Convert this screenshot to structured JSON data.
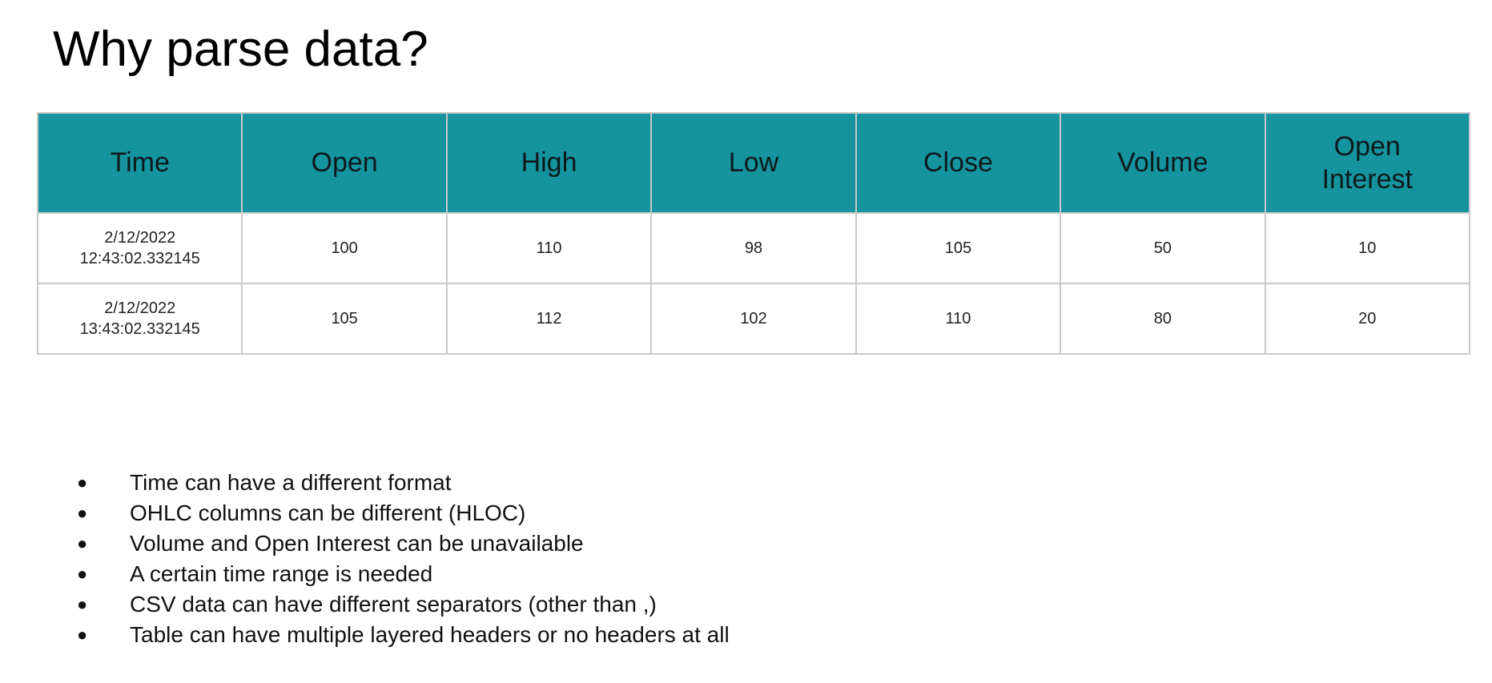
{
  "slide": {
    "title": "Why parse data?"
  },
  "table": {
    "headers": [
      "Time",
      "Open",
      "High",
      "Low",
      "Close",
      "Volume",
      "Open Interest"
    ],
    "rows": [
      {
        "time_date": "2/12/2022",
        "time_clock": "12:43:02.332145",
        "open": "100",
        "high": "110",
        "low": "98",
        "close": "105",
        "volume": "50",
        "open_interest": "10"
      },
      {
        "time_date": "2/12/2022",
        "time_clock": "13:43:02.332145",
        "open": "105",
        "high": "112",
        "low": "102",
        "close": "110",
        "volume": "80",
        "open_interest": "20"
      }
    ],
    "header_color": "#15939f"
  },
  "bullets": {
    "marker": "●",
    "items": [
      "Time can have a different format",
      "OHLC columns can be different (HLOC)",
      "Volume and Open Interest can be unavailable",
      "A certain time range is needed",
      "CSV data can have different separators (other than ,)",
      "Table can have multiple layered headers or no headers at all"
    ]
  }
}
